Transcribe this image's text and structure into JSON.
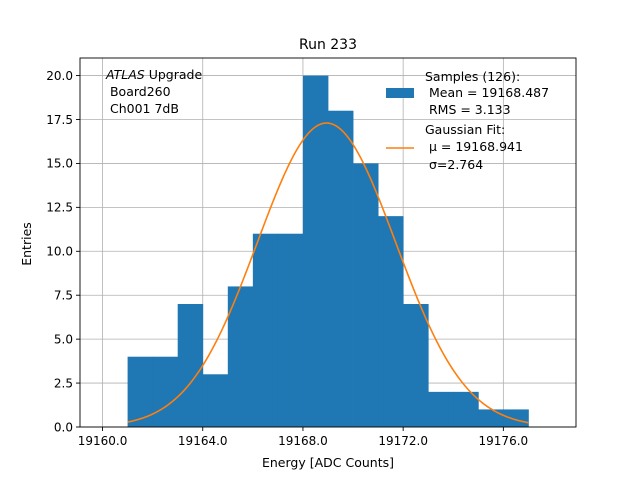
{
  "chart_data": {
    "type": "bar",
    "title": "Run 233",
    "xlabel": "Energy [ADC Counts]",
    "ylabel": "Entries",
    "xlim": [
      19159.1,
      19178.9
    ],
    "ylim": [
      0,
      21
    ],
    "x_ticks": [
      19160,
      19164,
      19168,
      19172,
      19176
    ],
    "x_tick_labels": [
      "19160.0",
      "19164.0",
      "19168.0",
      "19172.0",
      "19176.0"
    ],
    "y_ticks": [
      0,
      2.5,
      5,
      7.5,
      10,
      12.5,
      15,
      17.5,
      20
    ],
    "y_tick_labels": [
      "0.0",
      "2.5",
      "5.0",
      "7.5",
      "10.0",
      "12.5",
      "15.0",
      "17.5",
      "20.0"
    ],
    "grid": true,
    "annotation": {
      "line1_italic": "ATLAS",
      "line1_rest": " Upgrade",
      "line2": " Board260",
      "line3": " Ch001 7dB"
    },
    "legend": {
      "placement": "top-right",
      "histogram_lines": [
        "Samples (126):",
        " Mean = 19168.487",
        " RMS = 3.133"
      ],
      "fit_lines": [
        "Gaussian Fit:",
        " μ = 19168.941",
        " σ=2.764"
      ]
    },
    "histogram": {
      "color": "#1f77b4",
      "bin_edges": [
        19161,
        19162,
        19163,
        19164,
        19165,
        19166,
        19167,
        19168,
        19169,
        19170,
        19171,
        19172,
        19173,
        19174,
        19175,
        19176,
        19177
      ],
      "counts": [
        4,
        4,
        7,
        3,
        8,
        11,
        11,
        20,
        18,
        15,
        12,
        7,
        2,
        2,
        1,
        1
      ]
    },
    "fit": {
      "type": "gaussian",
      "color": "#ff7f0e",
      "amplitude": 17.3,
      "mu": 19168.941,
      "sigma": 2.764,
      "x_range": [
        19161,
        19177
      ]
    }
  }
}
